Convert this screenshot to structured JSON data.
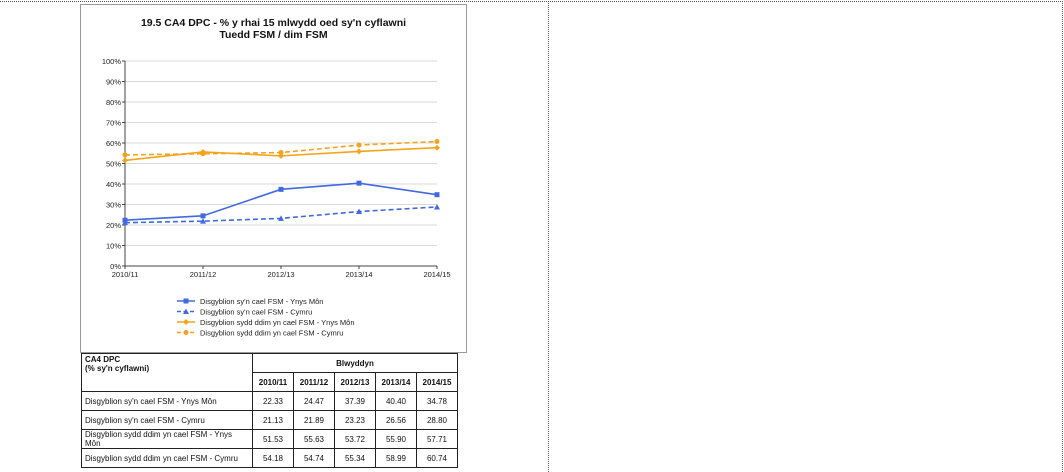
{
  "chart_data": {
    "type": "line",
    "title": "19.5  CA4 DPC - % y rhai 15 mlwydd oed sy'n cyflawni",
    "subtitle": "Tuedd FSM / dim FSM",
    "categories": [
      "2010/11",
      "2011/12",
      "2012/13",
      "2013/14",
      "2014/15"
    ],
    "ylim": [
      0,
      100
    ],
    "yticks": [
      "0%",
      "10%",
      "20%",
      "30%",
      "40%",
      "50%",
      "60%",
      "70%",
      "80%",
      "90%",
      "100%"
    ],
    "grid": true,
    "legend_position": "bottom",
    "series": [
      {
        "name": "Disgyblion sy'n cael FSM - Ynys Môn",
        "values": [
          22.33,
          24.47,
          37.39,
          40.4,
          34.78
        ],
        "color": "#4169e1",
        "dash": "solid",
        "marker": "square"
      },
      {
        "name": "Disgyblion sy'n cael FSM - Cymru",
        "values": [
          21.13,
          21.89,
          23.23,
          26.56,
          28.8
        ],
        "color": "#4169e1",
        "dash": "dashed",
        "marker": "triangle"
      },
      {
        "name": "Disgyblion sydd ddim yn cael FSM - Ynys Môn",
        "values": [
          51.53,
          55.63,
          53.72,
          55.9,
          57.71
        ],
        "color": "#f7a21b",
        "dash": "solid",
        "marker": "diamond"
      },
      {
        "name": "Disgyblion sydd ddim yn cael FSM - Cymru",
        "values": [
          54.18,
          54.74,
          55.34,
          58.99,
          60.74
        ],
        "color": "#f7a21b",
        "dash": "dashed",
        "marker": "circle"
      }
    ]
  },
  "table": {
    "corner_line1": "CA4 DPC",
    "corner_line2": "(% sy'n cyflawni)",
    "group_header": "Blwyddyn",
    "years": [
      "2010/11",
      "2011/12",
      "2012/13",
      "2013/14",
      "2014/15"
    ],
    "rows": [
      {
        "label": "Disgyblion sy'n cael FSM - Ynys Môn",
        "values": [
          "22.33",
          "24.47",
          "37.39",
          "40.40",
          "34.78"
        ]
      },
      {
        "label": "Disgyblion sy'n cael FSM - Cymru",
        "values": [
          "21.13",
          "21.89",
          "23.23",
          "26.56",
          "28.80"
        ]
      },
      {
        "label": "Disgyblion sydd ddim yn cael FSM - Ynys Môn",
        "values": [
          "51.53",
          "55.63",
          "53.72",
          "55.90",
          "57.71"
        ]
      },
      {
        "label": "Disgyblion sydd ddim yn cael FSM - Cymru",
        "values": [
          "54.18",
          "54.74",
          "55.34",
          "58.99",
          "60.74"
        ]
      }
    ]
  }
}
